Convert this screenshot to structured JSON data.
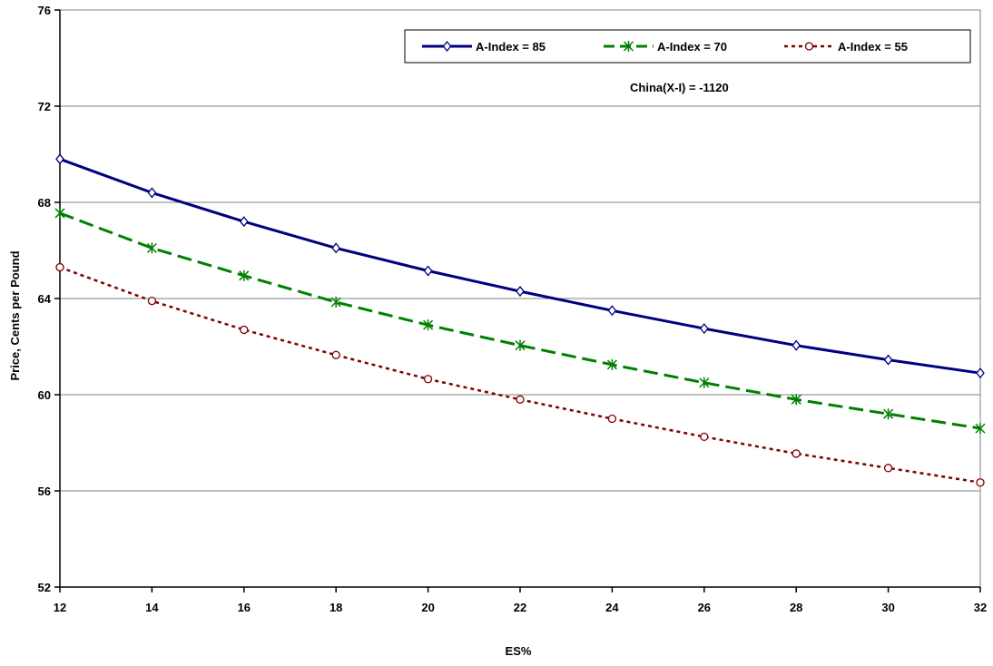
{
  "chart_data": {
    "type": "line",
    "xlabel": "ES%",
    "ylabel": "Price, Cents per Pound",
    "xlim": [
      12,
      32
    ],
    "ylim": [
      52,
      76
    ],
    "x_ticks": [
      12,
      14,
      16,
      18,
      20,
      22,
      24,
      26,
      28,
      30,
      32
    ],
    "y_ticks": [
      52,
      56,
      60,
      64,
      68,
      72,
      76
    ],
    "grid": "horizontal",
    "legend_position": "top-right",
    "annotation": "China(X-I)  =  -1120",
    "x": [
      12,
      14,
      16,
      18,
      20,
      22,
      24,
      26,
      28,
      30,
      32
    ],
    "series": [
      {
        "name": "A-Index  =  85",
        "color": "#000080",
        "line_style": "solid",
        "marker": "diamond",
        "values": [
          69.8,
          68.4,
          67.2,
          66.1,
          65.15,
          64.3,
          63.5,
          62.75,
          62.05,
          61.45,
          60.9
        ]
      },
      {
        "name": "A-Index  =  70",
        "color": "#008000",
        "line_style": "dashed",
        "marker": "asterisk",
        "values": [
          67.55,
          66.1,
          64.95,
          63.85,
          62.9,
          62.05,
          61.25,
          60.5,
          59.8,
          59.2,
          58.6
        ]
      },
      {
        "name": "A-Index  =  55",
        "color": "#800000",
        "line_style": "dotted",
        "marker": "circle",
        "values": [
          65.3,
          63.9,
          62.7,
          61.65,
          60.65,
          59.8,
          59.0,
          58.25,
          57.55,
          56.95,
          56.35
        ]
      }
    ]
  }
}
